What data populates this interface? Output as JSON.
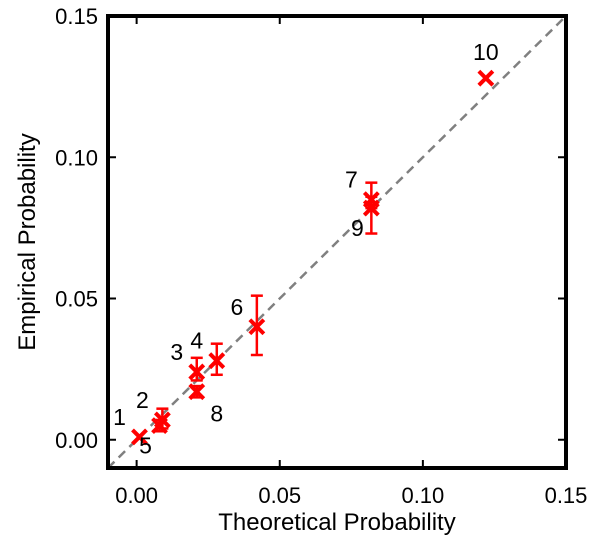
{
  "chart_data": {
    "type": "scatter",
    "title": "",
    "xlabel": "Theoretical Probability",
    "ylabel": "Empirical Probability",
    "xlim": [
      -0.01,
      0.15
    ],
    "ylim": [
      -0.01,
      0.15
    ],
    "x_ticks": [
      0.0,
      0.05,
      0.1,
      0.15
    ],
    "x_tick_labels": [
      "0.00",
      "0.05",
      "0.10",
      "0.15"
    ],
    "y_ticks": [
      0.0,
      0.05,
      0.1,
      0.15
    ],
    "y_tick_labels": [
      "0.00",
      "0.05",
      "0.10",
      "0.15"
    ],
    "reference_line": "y = x (dashed, gray)",
    "marker": "x",
    "marker_color": "#ff0000",
    "points": [
      {
        "label": "1",
        "x": 0.001,
        "y": 0.001,
        "err_low": 0.0,
        "err_high": 0.0,
        "label_side": "above-left"
      },
      {
        "label": "2",
        "x": 0.009,
        "y": 0.007,
        "err_low": 0.003,
        "err_high": 0.004,
        "label_side": "above-left"
      },
      {
        "label": "3",
        "x": 0.021,
        "y": 0.024,
        "err_low": 0.003,
        "err_high": 0.005,
        "label_side": "above-left"
      },
      {
        "label": "4",
        "x": 0.028,
        "y": 0.028,
        "err_low": 0.005,
        "err_high": 0.006,
        "label_side": "above-left"
      },
      {
        "label": "5",
        "x": 0.008,
        "y": 0.005,
        "err_low": 0.002,
        "err_high": 0.002,
        "label_side": "below-left"
      },
      {
        "label": "6",
        "x": 0.042,
        "y": 0.04,
        "err_low": 0.01,
        "err_high": 0.011,
        "label_side": "above-left"
      },
      {
        "label": "7",
        "x": 0.082,
        "y": 0.085,
        "err_low": 0.003,
        "err_high": 0.006,
        "label_side": "above-left"
      },
      {
        "label": "8",
        "x": 0.021,
        "y": 0.017,
        "err_low": 0.002,
        "err_high": 0.002,
        "label_side": "below-right"
      },
      {
        "label": "9",
        "x": 0.082,
        "y": 0.082,
        "err_low": 0.009,
        "err_high": 0.004,
        "label_side": "below-left"
      },
      {
        "label": "10",
        "x": 0.122,
        "y": 0.128,
        "err_low": 0.0,
        "err_high": 0.0,
        "label_side": "above"
      }
    ],
    "grid": false,
    "legend": "none"
  }
}
